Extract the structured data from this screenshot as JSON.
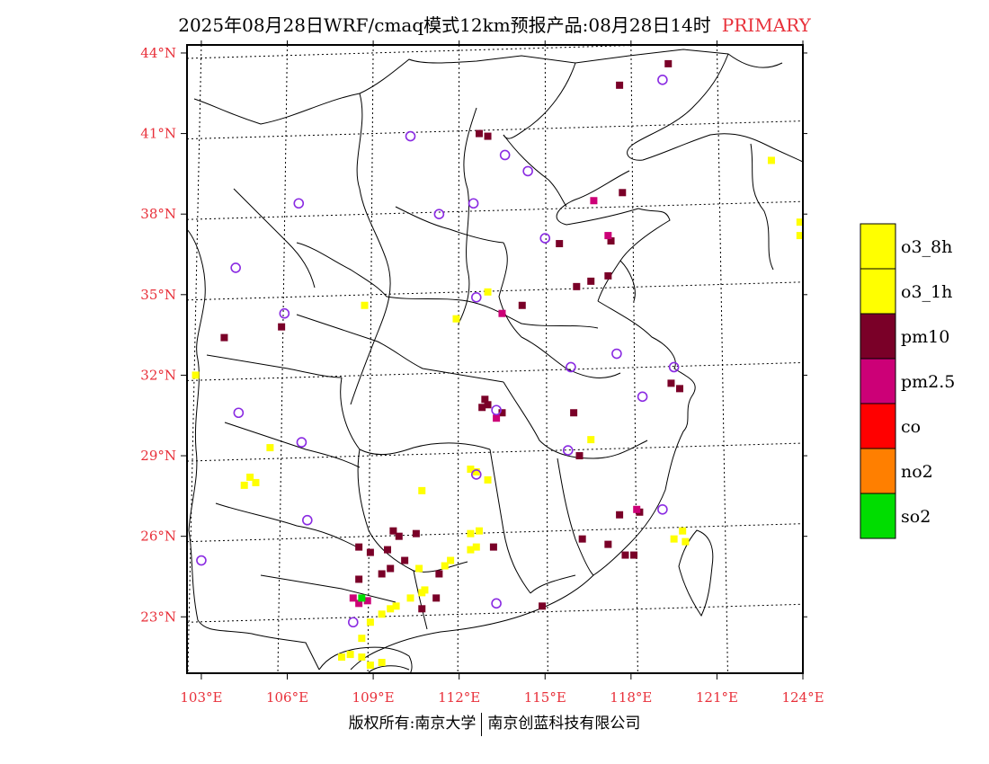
{
  "title": {
    "main": "2025年08月28日WRF/cmaq模式12km预报产品:08月28日14时",
    "tag": "PRIMARY"
  },
  "footer": {
    "left": "版权所有:南京大学",
    "right": "南京创蓝科技有限公司"
  },
  "map": {
    "lon_range": [
      102.5,
      124.0
    ],
    "lat_range": [
      20.9,
      44.3
    ],
    "lon_ticks": [
      103,
      106,
      109,
      112,
      115,
      118,
      121,
      124
    ],
    "lat_ticks": [
      23,
      26,
      29,
      32,
      35,
      38,
      41,
      44
    ],
    "lon_labels": [
      "103°E",
      "106°E",
      "109°E",
      "112°E",
      "115°E",
      "118°E",
      "121°E",
      "124°E"
    ],
    "lat_labels": [
      "23°N",
      "26°N",
      "29°N",
      "32°N",
      "35°N",
      "38°N",
      "41°N",
      "44°N"
    ],
    "tick_color": "#e8303a",
    "grid": true,
    "stations": [
      [
        104.2,
        36.0
      ],
      [
        104.3,
        30.6
      ],
      [
        106.4,
        38.4
      ],
      [
        106.5,
        29.5
      ],
      [
        106.7,
        26.6
      ],
      [
        105.9,
        34.3
      ],
      [
        103.0,
        25.1
      ],
      [
        108.3,
        22.8
      ],
      [
        110.3,
        40.9
      ],
      [
        111.3,
        38.0
      ],
      [
        112.5,
        38.4
      ],
      [
        112.6,
        34.9
      ],
      [
        113.3,
        30.7
      ],
      [
        112.6,
        28.3
      ],
      [
        113.3,
        23.5
      ],
      [
        113.6,
        40.2
      ],
      [
        114.4,
        39.6
      ],
      [
        115.0,
        37.1
      ],
      [
        115.9,
        32.3
      ],
      [
        115.8,
        29.2
      ],
      [
        117.5,
        32.8
      ],
      [
        118.4,
        31.2
      ],
      [
        119.1,
        43.0
      ],
      [
        119.5,
        32.3
      ],
      [
        119.1,
        27.0
      ]
    ],
    "pollutant_cells": [
      {
        "type": "pm10",
        "cells": [
          [
            112.9,
            31.1
          ],
          [
            113.0,
            30.9
          ],
          [
            112.8,
            30.8
          ],
          [
            113.5,
            30.6
          ],
          [
            116.0,
            30.6
          ],
          [
            108.5,
            25.6
          ],
          [
            108.9,
            25.4
          ],
          [
            109.5,
            25.5
          ],
          [
            109.9,
            26.0
          ],
          [
            110.5,
            26.1
          ],
          [
            110.1,
            25.1
          ],
          [
            109.3,
            24.6
          ],
          [
            109.6,
            24.8
          ],
          [
            108.5,
            24.4
          ],
          [
            113.0,
            40.9
          ],
          [
            112.7,
            41.0
          ],
          [
            117.7,
            38.8
          ],
          [
            115.5,
            36.9
          ],
          [
            117.3,
            37.0
          ],
          [
            116.1,
            35.3
          ],
          [
            116.6,
            35.5
          ],
          [
            117.2,
            35.7
          ],
          [
            119.4,
            31.7
          ],
          [
            119.7,
            31.5
          ],
          [
            116.2,
            29.0
          ],
          [
            117.6,
            26.8
          ],
          [
            118.3,
            26.9
          ],
          [
            117.2,
            25.7
          ],
          [
            118.1,
            25.3
          ],
          [
            116.3,
            25.9
          ],
          [
            111.3,
            24.6
          ],
          [
            110.7,
            23.3
          ],
          [
            111.2,
            23.7
          ],
          [
            114.9,
            23.4
          ],
          [
            103.8,
            33.4
          ],
          [
            105.8,
            33.8
          ],
          [
            114.2,
            34.6
          ],
          [
            117.6,
            42.8
          ],
          [
            119.3,
            43.6
          ],
          [
            113.2,
            25.6
          ],
          [
            117.8,
            25.3
          ],
          [
            109.7,
            26.2
          ]
        ]
      },
      {
        "type": "pm2.5",
        "cells": [
          [
            108.3,
            23.7
          ],
          [
            108.5,
            23.5
          ],
          [
            108.8,
            23.6
          ],
          [
            116.7,
            38.5
          ],
          [
            113.3,
            30.4
          ],
          [
            118.2,
            27.0
          ],
          [
            113.5,
            34.3
          ],
          [
            117.2,
            37.2
          ]
        ]
      },
      {
        "type": "so2",
        "cells": [
          [
            108.6,
            23.7
          ]
        ]
      },
      {
        "type": "o3_8h",
        "cells": [
          [
            108.9,
            22.8
          ],
          [
            109.3,
            23.1
          ],
          [
            109.8,
            23.4
          ],
          [
            110.3,
            23.7
          ],
          [
            110.7,
            23.9
          ],
          [
            110.8,
            24.0
          ],
          [
            109.6,
            23.3
          ],
          [
            108.2,
            21.6
          ],
          [
            108.6,
            21.5
          ],
          [
            107.9,
            21.5
          ],
          [
            108.9,
            21.2
          ],
          [
            109.3,
            21.3
          ],
          [
            108.6,
            22.2
          ],
          [
            110.6,
            24.8
          ],
          [
            111.5,
            24.9
          ],
          [
            112.4,
            25.5
          ],
          [
            112.6,
            25.6
          ],
          [
            112.4,
            26.1
          ],
          [
            112.7,
            26.2
          ],
          [
            111.7,
            25.1
          ],
          [
            110.7,
            27.7
          ],
          [
            112.4,
            28.5
          ],
          [
            112.6,
            28.4
          ],
          [
            113.0,
            28.1
          ],
          [
            104.7,
            28.2
          ],
          [
            104.9,
            28.0
          ],
          [
            104.5,
            27.9
          ],
          [
            105.4,
            29.3
          ],
          [
            108.7,
            34.6
          ],
          [
            111.9,
            34.1
          ],
          [
            113.0,
            35.1
          ],
          [
            116.6,
            29.6
          ],
          [
            119.8,
            26.2
          ],
          [
            119.9,
            25.8
          ],
          [
            119.5,
            25.9
          ],
          [
            122.9,
            40.0
          ],
          [
            123.9,
            37.7
          ],
          [
            123.9,
            37.2
          ],
          [
            102.8,
            32.0
          ]
        ]
      }
    ]
  },
  "legend": {
    "items": [
      {
        "label": "o3_8h",
        "color": "#ffff00"
      },
      {
        "label": "o3_1h",
        "color": "#ffff00"
      },
      {
        "label": "pm10",
        "color": "#7a0028"
      },
      {
        "label": "pm2.5",
        "color": "#cc0077"
      },
      {
        "label": "co",
        "color": "#ff0000"
      },
      {
        "label": "no2",
        "color": "#ff7f00"
      },
      {
        "label": "so2",
        "color": "#00dd00"
      }
    ]
  }
}
